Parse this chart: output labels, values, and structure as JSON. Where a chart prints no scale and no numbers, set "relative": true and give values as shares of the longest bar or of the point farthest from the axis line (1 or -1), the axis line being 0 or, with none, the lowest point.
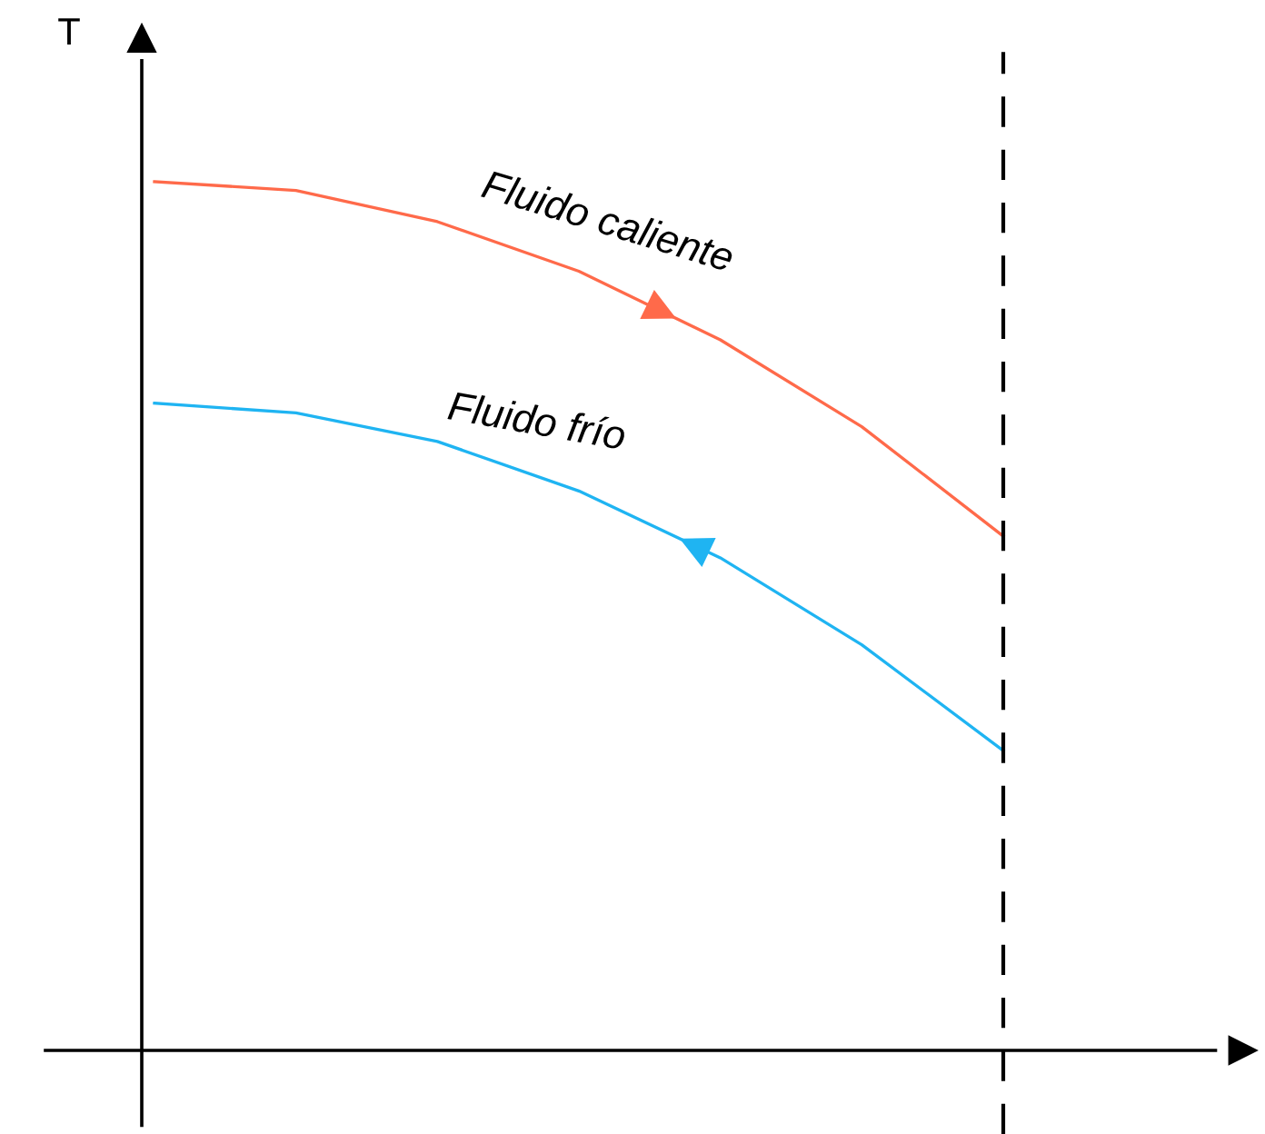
{
  "chart_data": {
    "type": "line",
    "relative": true,
    "ylabel": "T",
    "categories": [
      null,
      null,
      null,
      null,
      null,
      null,
      null
    ],
    "series": [
      {
        "name": "Fluido caliente",
        "color": "#ff6a4a",
        "values": [
          1,
          0.99,
          0.954,
          0.897,
          0.818,
          0.718,
          0.592
        ]
      },
      {
        "name": "Fluido frío",
        "color": "#1fb4f2",
        "values": [
          0.745,
          0.734,
          0.701,
          0.644,
          0.567,
          0.467,
          0.345
        ]
      }
    ],
    "marker": "none",
    "line_style": "solid"
  }
}
